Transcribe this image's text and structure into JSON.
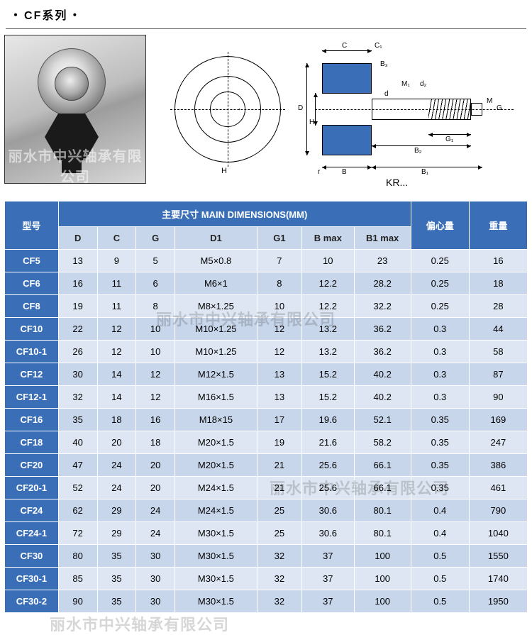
{
  "title_prefix": "・",
  "title_text": "CF系列",
  "title_suffix": "・",
  "watermark": "丽水市中兴轴承有限公司",
  "diagram": {
    "labels": {
      "D": "D",
      "H": "H",
      "C": "C",
      "C1": "C₁",
      "B3": "B₃",
      "M1": "M₁",
      "d": "d",
      "d2": "d₂",
      "M": "M",
      "G": "G",
      "G1": "G₁",
      "B": "B",
      "B1": "B₁",
      "B2": "B₂",
      "r": "r"
    },
    "caption": "KR..."
  },
  "table": {
    "header_main_span": "主要尺寸 MAIN DIMENSIONS(MM)",
    "header_model": "型号",
    "header_ecc": "偏心量",
    "header_weight": "重量",
    "cols": {
      "D": "D",
      "C": "C",
      "G": "G",
      "D1": "D1",
      "G1": "G1",
      "Bmax": "B max",
      "B1max": "B1 max"
    },
    "rows": [
      {
        "m": "CF5",
        "D": "13",
        "C": "9",
        "G": "5",
        "D1": "M5×0.8",
        "G1": "7",
        "Bmax": "10",
        "B1max": "23",
        "ecc": "0.25",
        "wt": "16"
      },
      {
        "m": "CF6",
        "D": "16",
        "C": "11",
        "G": "6",
        "D1": "M6×1",
        "G1": "8",
        "Bmax": "12.2",
        "B1max": "28.2",
        "ecc": "0.25",
        "wt": "18"
      },
      {
        "m": "CF8",
        "D": "19",
        "C": "11",
        "G": "8",
        "D1": "M8×1.25",
        "G1": "10",
        "Bmax": "12.2",
        "B1max": "32.2",
        "ecc": "0.25",
        "wt": "28"
      },
      {
        "m": "CF10",
        "D": "22",
        "C": "12",
        "G": "10",
        "D1": "M10×1.25",
        "G1": "12",
        "Bmax": "13.2",
        "B1max": "36.2",
        "ecc": "0.3",
        "wt": "44"
      },
      {
        "m": "CF10-1",
        "D": "26",
        "C": "12",
        "G": "10",
        "D1": "M10×1.25",
        "G1": "12",
        "Bmax": "13.2",
        "B1max": "36.2",
        "ecc": "0.3",
        "wt": "58"
      },
      {
        "m": "CF12",
        "D": "30",
        "C": "14",
        "G": "12",
        "D1": "M12×1.5",
        "G1": "13",
        "Bmax": "15.2",
        "B1max": "40.2",
        "ecc": "0.3",
        "wt": "87"
      },
      {
        "m": "CF12-1",
        "D": "32",
        "C": "14",
        "G": "12",
        "D1": "M16×1.5",
        "G1": "13",
        "Bmax": "15.2",
        "B1max": "40.2",
        "ecc": "0.3",
        "wt": "90"
      },
      {
        "m": "CF16",
        "D": "35",
        "C": "18",
        "G": "16",
        "D1": "M18×15",
        "G1": "17",
        "Bmax": "19.6",
        "B1max": "52.1",
        "ecc": "0.35",
        "wt": "169"
      },
      {
        "m": "CF18",
        "D": "40",
        "C": "20",
        "G": "18",
        "D1": "M20×1.5",
        "G1": "19",
        "Bmax": "21.6",
        "B1max": "58.2",
        "ecc": "0.35",
        "wt": "247"
      },
      {
        "m": "CF20",
        "D": "47",
        "C": "24",
        "G": "20",
        "D1": "M20×1.5",
        "G1": "21",
        "Bmax": "25.6",
        "B1max": "66.1",
        "ecc": "0.35",
        "wt": "386"
      },
      {
        "m": "CF20-1",
        "D": "52",
        "C": "24",
        "G": "20",
        "D1": "M24×1.5",
        "G1": "21",
        "Bmax": "25.6",
        "B1max": "66.1",
        "ecc": "0.35",
        "wt": "461"
      },
      {
        "m": "CF24",
        "D": "62",
        "C": "29",
        "G": "24",
        "D1": "M24×1.5",
        "G1": "25",
        "Bmax": "30.6",
        "B1max": "80.1",
        "ecc": "0.4",
        "wt": "790"
      },
      {
        "m": "CF24-1",
        "D": "72",
        "C": "29",
        "G": "24",
        "D1": "M30×1.5",
        "G1": "25",
        "Bmax": "30.6",
        "B1max": "80.1",
        "ecc": "0.4",
        "wt": "1040"
      },
      {
        "m": "CF30",
        "D": "80",
        "C": "35",
        "G": "30",
        "D1": "M30×1.5",
        "G1": "32",
        "Bmax": "37",
        "B1max": "100",
        "ecc": "0.5",
        "wt": "1550"
      },
      {
        "m": "CF30-1",
        "D": "85",
        "C": "35",
        "G": "30",
        "D1": "M30×1.5",
        "G1": "32",
        "Bmax": "37",
        "B1max": "100",
        "ecc": "0.5",
        "wt": "1740"
      },
      {
        "m": "CF30-2",
        "D": "90",
        "C": "35",
        "G": "30",
        "D1": "M30×1.5",
        "G1": "32",
        "Bmax": "37",
        "B1max": "100",
        "ecc": "0.5",
        "wt": "1950"
      }
    ]
  },
  "style": {
    "header_bg": "#3a6fb7",
    "subheader_bg": "#c7d6ea",
    "row_odd_bg": "#dde6f2",
    "row_even_bg": "#c7d6ea",
    "border_color": "#ffffff",
    "font_size_table": 13
  }
}
